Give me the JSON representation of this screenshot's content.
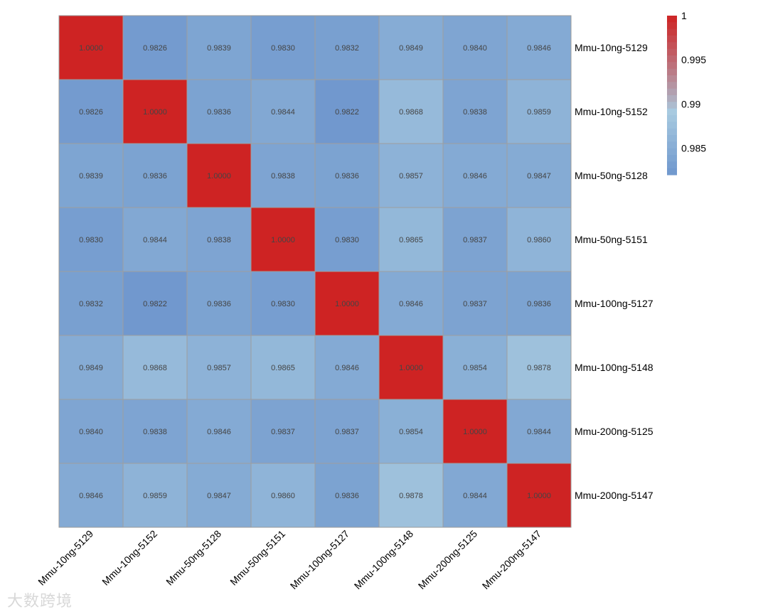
{
  "chart_data": {
    "type": "heatmap",
    "title": "",
    "rows": [
      "Mmu-10ng-5129",
      "Mmu-10ng-5152",
      "Mmu-50ng-5128",
      "Mmu-50ng-5151",
      "Mmu-100ng-5127",
      "Mmu-100ng-5148",
      "Mmu-200ng-5125",
      "Mmu-200ng-5147"
    ],
    "columns": [
      "Mmu-10ng-5129",
      "Mmu-10ng-5152",
      "Mmu-50ng-5128",
      "Mmu-50ng-5151",
      "Mmu-100ng-5127",
      "Mmu-100ng-5148",
      "Mmu-200ng-5125",
      "Mmu-200ng-5147"
    ],
    "values": [
      [
        1.0,
        0.9826,
        0.9839,
        0.983,
        0.9832,
        0.9849,
        0.984,
        0.9846
      ],
      [
        0.9826,
        1.0,
        0.9836,
        0.9844,
        0.9822,
        0.9868,
        0.9838,
        0.9859
      ],
      [
        0.9839,
        0.9836,
        1.0,
        0.9838,
        0.9836,
        0.9857,
        0.9846,
        0.9847
      ],
      [
        0.983,
        0.9844,
        0.9838,
        1.0,
        0.983,
        0.9865,
        0.9837,
        0.986
      ],
      [
        0.9832,
        0.9822,
        0.9836,
        0.983,
        1.0,
        0.9846,
        0.9837,
        0.9836
      ],
      [
        0.9849,
        0.9868,
        0.9857,
        0.9865,
        0.9846,
        1.0,
        0.9854,
        0.9878
      ],
      [
        0.984,
        0.9838,
        0.9846,
        0.9837,
        0.9837,
        0.9854,
        1.0,
        0.9844
      ],
      [
        0.9846,
        0.9859,
        0.9847,
        0.986,
        0.9836,
        0.9878,
        0.9844,
        1.0
      ]
    ],
    "value_format": "4 decimals",
    "legend": {
      "min": 0.982,
      "max": 1.0,
      "ticks": [
        1,
        0.995,
        0.99,
        0.985
      ],
      "tick_labels": [
        "1",
        "0.995",
        "0.99",
        "0.985"
      ],
      "placement": "top-right"
    },
    "colors": {
      "low": "#6f97cd",
      "mid": "#a9cbe0",
      "high": "#ce2323",
      "cell_border": "#9e9e9e",
      "text": "#444444"
    }
  },
  "watermark": "大数跨境"
}
